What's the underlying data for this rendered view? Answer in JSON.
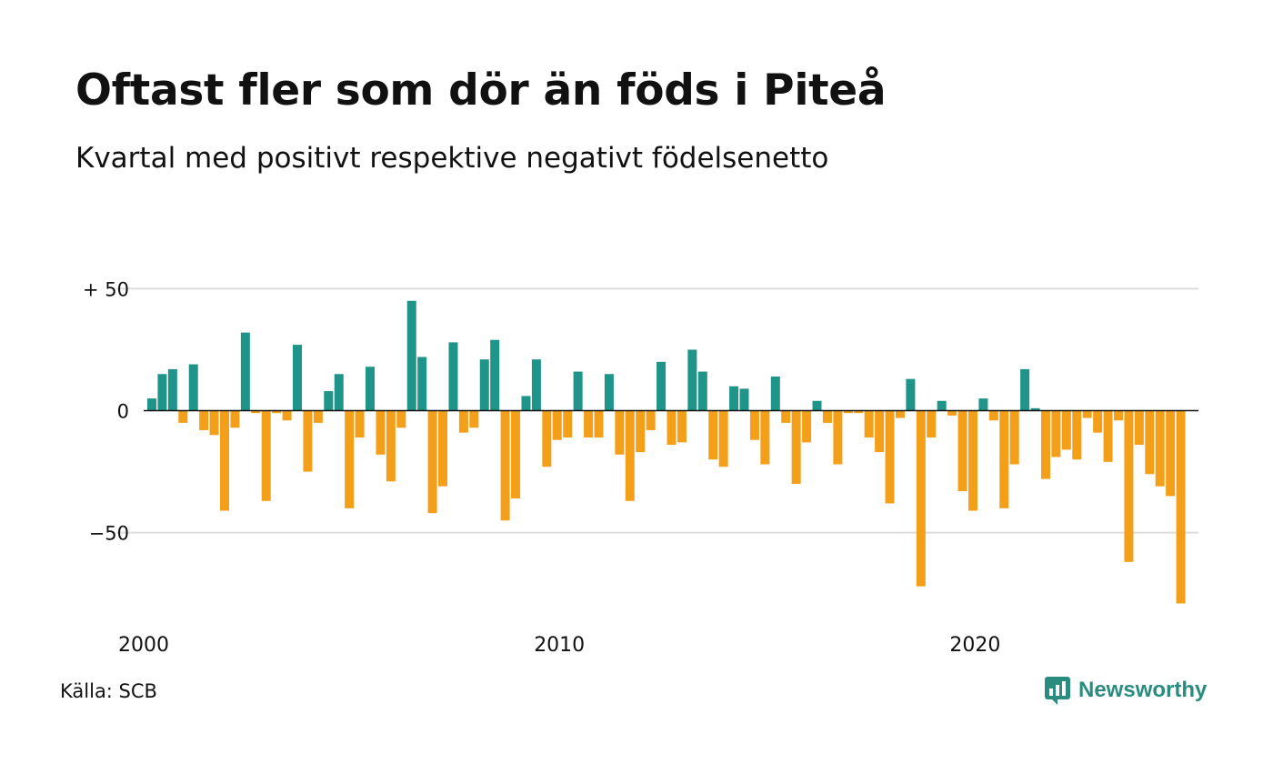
{
  "title": "Oftast fler som dör än föds i Piteå",
  "subtitle": "Kvartal med positivt respektive negativt födelsenetto",
  "source": "Källa: SCB",
  "brand": "Newsworthy",
  "colors": {
    "positive": "#1f9488",
    "negative": "#f39f1a",
    "grid": "#dddddd",
    "brand": "#2a8c7f"
  },
  "chart_data": {
    "type": "bar",
    "ylim": [
      -80,
      50
    ],
    "y_ticks": [
      {
        "value": 50,
        "label": "+ 50"
      },
      {
        "value": 0,
        "label": "0"
      },
      {
        "value": -50,
        "label": "−50"
      }
    ],
    "x_ticks": [
      {
        "year": 2000,
        "label": "2000"
      },
      {
        "year": 2010,
        "label": "2010"
      },
      {
        "year": 2020,
        "label": "2020"
      }
    ],
    "x_start": "2000 Q1",
    "values": [
      5,
      15,
      17,
      -5,
      19,
      -8,
      -10,
      -41,
      -7,
      32,
      -1,
      -37,
      -1,
      -4,
      27,
      -25,
      -5,
      8,
      15,
      -40,
      -11,
      18,
      -18,
      -29,
      -7,
      45,
      22,
      -42,
      -31,
      28,
      -9,
      -7,
      21,
      29,
      -45,
      -36,
      6,
      21,
      -23,
      -12,
      -11,
      16,
      -11,
      -11,
      15,
      -18,
      -37,
      -17,
      -8,
      20,
      -14,
      -13,
      25,
      16,
      -20,
      -23,
      10,
      9,
      -12,
      -22,
      14,
      -5,
      -30,
      -13,
      4,
      -5,
      -22,
      -1,
      -1,
      -11,
      -17,
      -38,
      -3,
      13,
      -72,
      -11,
      4,
      -2,
      -33,
      -41,
      5,
      -4,
      -40,
      -22,
      17,
      1,
      -28,
      -19,
      -16,
      -20,
      -3,
      -9,
      -21,
      -4,
      -62,
      -14,
      -26,
      -31,
      -35,
      -79
    ]
  }
}
